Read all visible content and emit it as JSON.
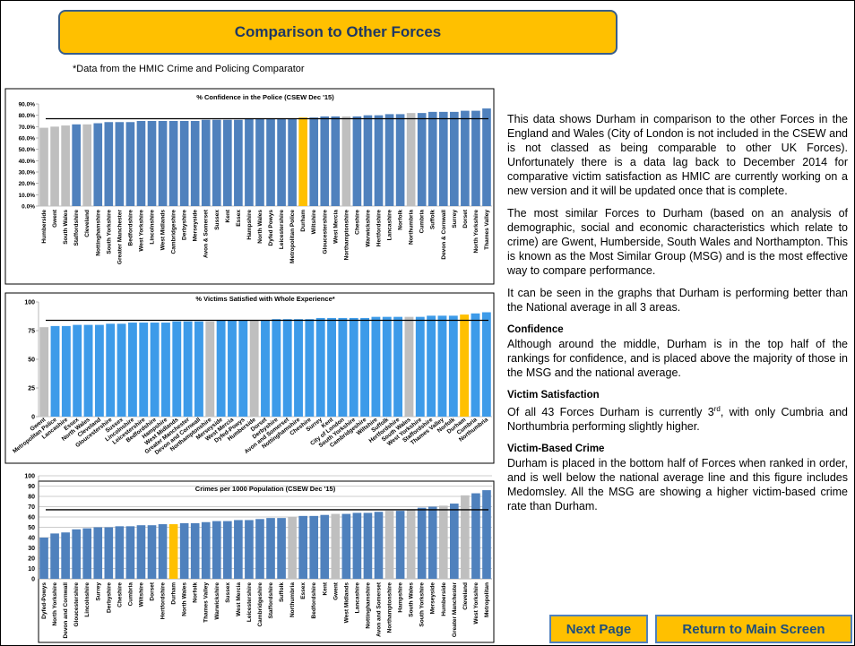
{
  "header": {
    "title": "Comparison to Other Forces",
    "note": "*Data from the HMIC Crime and Policing Comparator"
  },
  "chart_data": [
    {
      "type": "bar",
      "title": "% Confidence in the Police (CSEW Dec '15)",
      "categories": [
        "Humberside",
        "Gwent",
        "South Wales",
        "Staffordshire",
        "Cleveland",
        "Nottinghamshire",
        "South Yorkshire",
        "Greater Manchester",
        "Bedfordshire",
        "West Yorkshire",
        "Lincolnshire",
        "West Midlands",
        "Cambridgeshire",
        "Derbyshire",
        "Merseyside",
        "Avon & Somerset",
        "Sussex",
        "Kent",
        "Essex",
        "Hampshire",
        "North Wales",
        "Dyfed Powys",
        "Leicestershire",
        "Metropolitan Police",
        "Durham",
        "Wiltshire",
        "Gloucestershire",
        "West Mercia",
        "Northamptonshire",
        "Cheshire",
        "Warwickshire",
        "Hertfordshire",
        "Lancashire",
        "Norfolk",
        "Northumbria",
        "Cumbria",
        "Suffolk",
        "Devon & Cornwall",
        "Surrey",
        "Dorset",
        "North Yorkshire",
        "Thames Valley"
      ],
      "values": [
        69,
        70,
        71,
        72,
        72,
        73,
        74,
        74,
        74,
        75,
        75,
        75,
        75,
        75,
        75,
        76,
        76,
        76,
        76,
        77,
        77,
        77,
        77,
        77,
        78,
        78,
        79,
        79,
        79,
        79,
        80,
        80,
        81,
        81,
        82,
        82,
        83,
        83,
        83,
        84,
        84,
        86
      ],
      "colors": [
        "#bfbfbf",
        "#bfbfbf",
        "#bfbfbf",
        "#4f81bd",
        "#bfbfbf",
        "#4f81bd",
        "#4f81bd",
        "#4f81bd",
        "#4f81bd",
        "#4f81bd",
        "#4f81bd",
        "#4f81bd",
        "#4f81bd",
        "#4f81bd",
        "#4f81bd",
        "#4f81bd",
        "#4f81bd",
        "#4f81bd",
        "#4f81bd",
        "#4f81bd",
        "#4f81bd",
        "#4f81bd",
        "#4f81bd",
        "#4f81bd",
        "#ffc000",
        "#4f81bd",
        "#4f81bd",
        "#4f81bd",
        "#bfbfbf",
        "#4f81bd",
        "#4f81bd",
        "#4f81bd",
        "#4f81bd",
        "#4f81bd",
        "#bfbfbf",
        "#4f81bd",
        "#4f81bd",
        "#4f81bd",
        "#4f81bd",
        "#4f81bd",
        "#4f81bd",
        "#4f81bd"
      ],
      "ylim": [
        0,
        90
      ],
      "yticks": [
        {
          "value": 0,
          "label": "0.0%"
        },
        {
          "value": 10,
          "label": "10.0%"
        },
        {
          "value": 20,
          "label": "20.0%"
        },
        {
          "value": 30,
          "label": "30.0%"
        },
        {
          "value": 40,
          "label": "40.0%"
        },
        {
          "value": 50,
          "label": "50.0%"
        },
        {
          "value": 60,
          "label": "60.0%"
        },
        {
          "value": 70,
          "label": "70.0%"
        },
        {
          "value": 80,
          "label": "80.0%"
        },
        {
          "value": 90,
          "label": "90.0%"
        }
      ],
      "reference_lines": [
        77
      ],
      "grid": false
    },
    {
      "type": "bar",
      "title": "% Victims Satisfied with Whole Experience*",
      "categories": [
        "Gwent",
        "Metropolitan Police",
        "Lancashire",
        "Essex",
        "North Wales",
        "Cleveland",
        "Gloucestershire",
        "Sussex",
        "Lincolnshire",
        "Leicestershire",
        "Bedfordshire",
        "Hampshire",
        "West Midlands",
        "Greater Manchester",
        "Devon and Cornwall",
        "Northamptonshire",
        "Merseyside",
        "West Mercia",
        "Dyfed-Powys",
        "Humberside",
        "Dorset",
        "Derbyshire",
        "Avon and Somerset",
        "Nottinghamshire",
        "Cheshire",
        "Surrey",
        "Kent",
        "City of London",
        "South Yorkshire",
        "Cambridgeshire",
        "Wiltshire",
        "Suffolk",
        "Hertfordshire",
        "South Wales",
        "West Yorkshire",
        "Staffordshire",
        "Thames Valley",
        "Norfolk",
        "Durham",
        "Cumbria",
        "Northumbria"
      ],
      "values": [
        78,
        79,
        79,
        80,
        80,
        80,
        81,
        81,
        82,
        82,
        82,
        82,
        83,
        83,
        83,
        83,
        84,
        84,
        84,
        84,
        84,
        85,
        85,
        85,
        85,
        86,
        86,
        86,
        86,
        86,
        87,
        87,
        87,
        87,
        87,
        88,
        88,
        88,
        89,
        90,
        91
      ],
      "colors": [
        "#bfbfbf",
        "#3d9be9",
        "#3d9be9",
        "#3d9be9",
        "#3d9be9",
        "#3d9be9",
        "#3d9be9",
        "#3d9be9",
        "#3d9be9",
        "#3d9be9",
        "#3d9be9",
        "#3d9be9",
        "#3d9be9",
        "#3d9be9",
        "#3d9be9",
        "#bfbfbf",
        "#3d9be9",
        "#3d9be9",
        "#3d9be9",
        "#bfbfbf",
        "#3d9be9",
        "#3d9be9",
        "#3d9be9",
        "#3d9be9",
        "#3d9be9",
        "#3d9be9",
        "#3d9be9",
        "#3d9be9",
        "#3d9be9",
        "#3d9be9",
        "#3d9be9",
        "#3d9be9",
        "#3d9be9",
        "#bfbfbf",
        "#3d9be9",
        "#3d9be9",
        "#3d9be9",
        "#3d9be9",
        "#ffc000",
        "#3d9be9",
        "#3d9be9"
      ],
      "ylim": [
        0,
        100
      ],
      "yticks": [
        0,
        25,
        50,
        75,
        100
      ],
      "reference_lines": [
        84
      ],
      "grid": false
    },
    {
      "type": "bar",
      "title": "Crimes per 1000 Population (CSEW Dec '15)",
      "categories": [
        "Dyfed-Powys",
        "North Yorkshire",
        "Devon and Cornwall",
        "Gloucestershire",
        "Lincolnshire",
        "Surrey",
        "Derbyshire",
        "Cheshire",
        "Cumbria",
        "Wiltshire",
        "Dorset",
        "Hertfordshire",
        "Durham",
        "North Wales",
        "Norfolk",
        "Thames Valley",
        "Warwickshire",
        "Sussex",
        "West Mercia",
        "Leicestershire",
        "Cambridgeshire",
        "Staffordshire",
        "Suffolk",
        "Northumbria",
        "Essex",
        "Bedfordshire",
        "Kent",
        "Gwent",
        "West Midlands",
        "Lancashire",
        "Nottinghamshire",
        "Avon and Somerset",
        "Northamptonshire",
        "Hampshire",
        "South Wales",
        "South Yorkshire",
        "Merseyside",
        "Humberside",
        "Greater Manchester",
        "Cleveland",
        "West Yorkshire",
        "Metropolitan"
      ],
      "values": [
        40,
        44,
        45,
        48,
        49,
        50,
        50,
        51,
        51,
        52,
        52,
        53,
        53,
        54,
        54,
        55,
        56,
        56,
        57,
        57,
        58,
        59,
        59,
        60,
        61,
        61,
        62,
        63,
        63,
        64,
        64,
        65,
        66,
        66,
        67,
        69,
        70,
        71,
        73,
        81,
        83,
        86
      ],
      "colors": [
        "#4f81bd",
        "#4f81bd",
        "#4f81bd",
        "#4f81bd",
        "#4f81bd",
        "#4f81bd",
        "#4f81bd",
        "#4f81bd",
        "#4f81bd",
        "#4f81bd",
        "#4f81bd",
        "#4f81bd",
        "#ffc000",
        "#4f81bd",
        "#4f81bd",
        "#4f81bd",
        "#4f81bd",
        "#4f81bd",
        "#4f81bd",
        "#4f81bd",
        "#4f81bd",
        "#4f81bd",
        "#4f81bd",
        "#bfbfbf",
        "#4f81bd",
        "#4f81bd",
        "#4f81bd",
        "#bfbfbf",
        "#4f81bd",
        "#4f81bd",
        "#4f81bd",
        "#4f81bd",
        "#bfbfbf",
        "#4f81bd",
        "#bfbfbf",
        "#4f81bd",
        "#4f81bd",
        "#bfbfbf",
        "#4f81bd",
        "#bfbfbf",
        "#4f81bd",
        "#4f81bd"
      ],
      "ylim": [
        0,
        100
      ],
      "yticks": [
        0,
        10,
        20,
        30,
        40,
        50,
        60,
        70,
        80,
        90,
        100
      ],
      "reference_lines": [
        67
      ],
      "grid": true
    }
  ],
  "text": {
    "intro": "This data shows Durham in comparison to the other Forces in the England and Wales (City of London is not included in the CSEW and is not classed as being comparable to other UK Forces). Unfortunately there is a data lag back to December 2014 for comparative victim satisfaction as HMIC are currently working on a new version and it will be updated once that is complete.",
    "msg": "The most similar Forces to Durham (based on an analysis of demographic, social and economic characteristics which relate to crime) are Gwent, Humberside, South Wales and Northampton. This is known as the Most Similar Group (MSG) and is the most effective way to compare performance.",
    "summary": "It can be seen in the graphs that Durham is performing better than the National average in all 3 areas.",
    "confidence_heading": "Confidence",
    "confidence": "Although around the middle, Durham is in the top half of the rankings for confidence, and is placed above the majority of those in the MSG and the national average.",
    "satisfaction_heading": "Victim Satisfaction",
    "satisfaction_start": "Of all 43 Forces Durham is currently 3",
    "satisfaction_sup": "rd",
    "satisfaction_end": ", with only Cumbria and Northumbria performing slightly higher.",
    "crime_heading": "Victim-Based Crime",
    "crime": "Durham is placed in the bottom half of Forces when ranked in order, and is well below the national average line and this figure includes Medomsley. All the MSG are showing a higher victim-based crime rate than Durham."
  },
  "buttons": {
    "next": "Next Page",
    "main": "Return to Main Screen"
  }
}
